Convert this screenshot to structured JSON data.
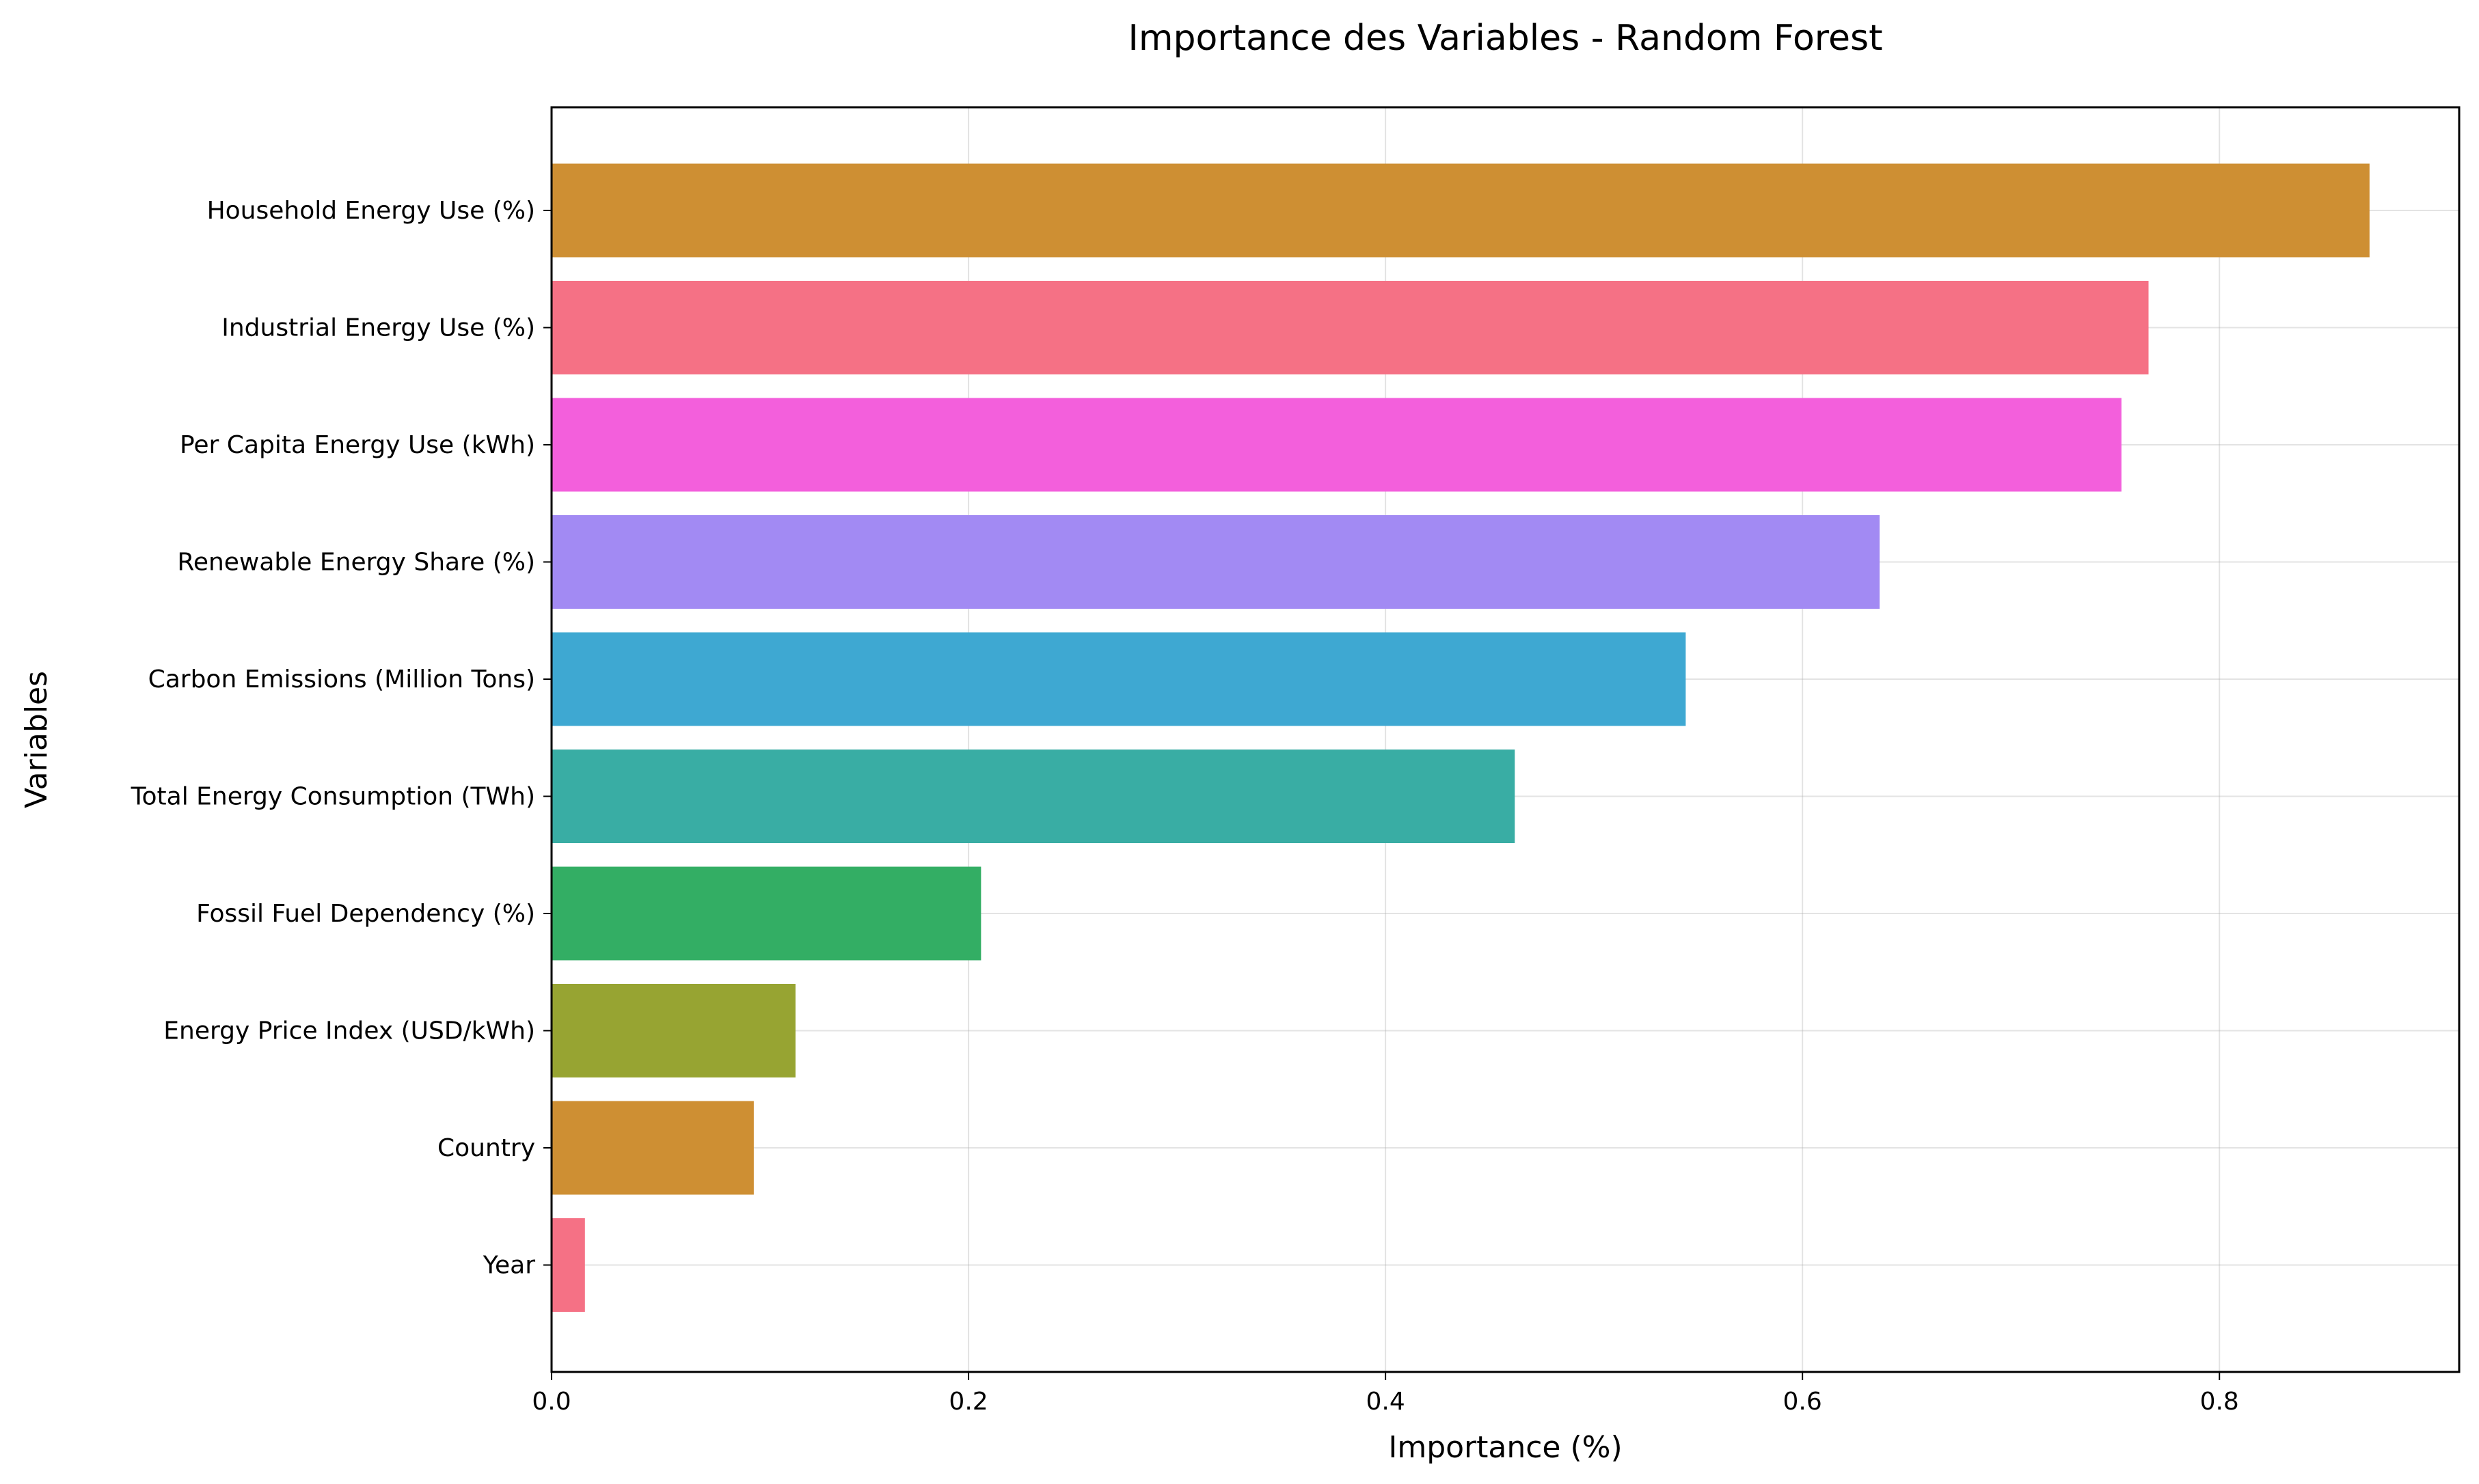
{
  "chart_data": {
    "type": "bar",
    "orientation": "horizontal",
    "title": "Importance des Variables - Random Forest",
    "xlabel": "Importance (%)",
    "ylabel": "Variables",
    "xlim": [
      0,
      0.915
    ],
    "xticks": [
      0.0,
      0.2,
      0.4,
      0.6,
      0.8
    ],
    "xtick_labels": [
      "0.0",
      "0.2",
      "0.4",
      "0.6",
      "0.8"
    ],
    "grid": true,
    "legend": false,
    "categories": [
      "Household Energy Use (%)",
      "Industrial Energy Use (%)",
      "Per Capita Energy Use (kWh)",
      "Renewable Energy Share (%)",
      "Carbon Emissions (Million Tons)",
      "Total Energy Consumption (TWh)",
      "Fossil Fuel Dependency (%)",
      "Energy Price Index (USD/kWh)",
      "Country",
      "Year"
    ],
    "values": [
      0.872,
      0.766,
      0.753,
      0.637,
      0.544,
      0.462,
      0.206,
      0.117,
      0.097,
      0.016
    ],
    "colors": [
      "#ce8f33",
      "#f57185",
      "#f35fdc",
      "#a28af3",
      "#3ea8d2",
      "#39ada4",
      "#33ae64",
      "#97a432",
      "#ce8f33",
      "#f57185"
    ]
  }
}
